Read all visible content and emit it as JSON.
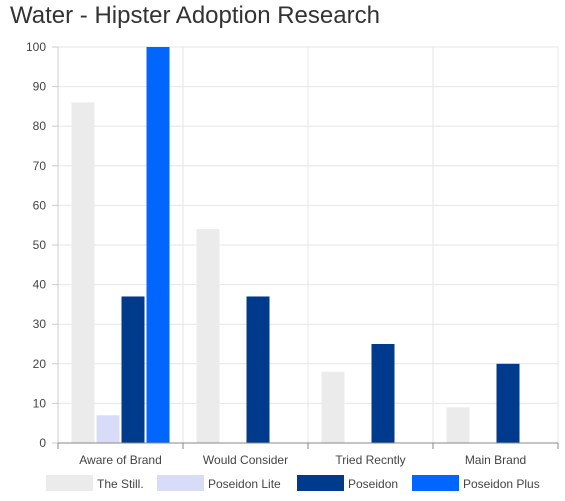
{
  "chart_data": {
    "type": "bar",
    "title": "Water - Hipster Adoption Research",
    "xlabel": "",
    "ylabel": "",
    "ylim": [
      0,
      100
    ],
    "yticks": [
      0,
      10,
      20,
      30,
      40,
      50,
      60,
      70,
      80,
      90,
      100
    ],
    "grid": true,
    "legend": "bottom",
    "categories": [
      "Aware of Brand",
      "Would Consider",
      "Tried Recntly",
      "Main Brand"
    ],
    "series": [
      {
        "name": "The Still.",
        "color": "#ebebeb",
        "values": [
          86,
          54,
          18,
          9
        ]
      },
      {
        "name": "Poseidon Lite",
        "color": "#d8dcf8",
        "values": [
          7,
          0,
          0,
          0
        ]
      },
      {
        "name": "Poseidon",
        "color": "#003a8c",
        "values": [
          37,
          37,
          25,
          20
        ]
      },
      {
        "name": "Poseidon Plus",
        "color": "#0066ff",
        "values": [
          100,
          0,
          0,
          0
        ]
      }
    ]
  }
}
